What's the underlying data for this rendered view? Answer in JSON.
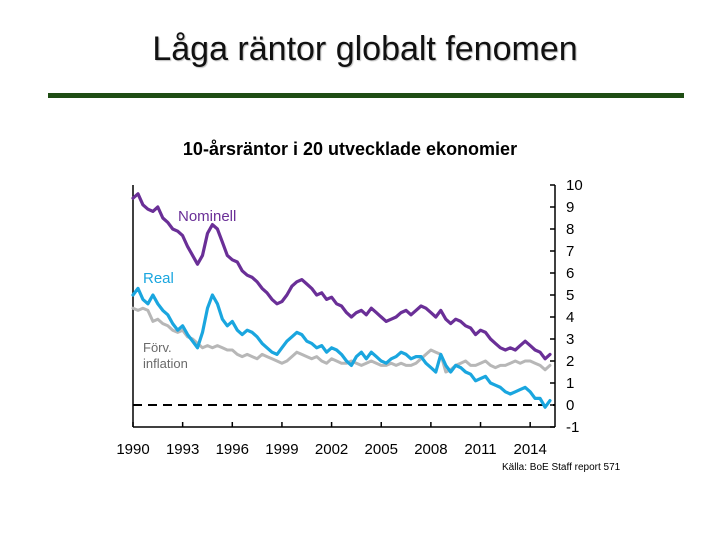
{
  "slide": {
    "title": "Låga räntor globalt fenomen",
    "source": "Källa: BoE Staff report 571"
  },
  "colors": {
    "rule": "#1f4d14",
    "nominal": "#6a2f97",
    "real": "#1aa6df",
    "inflation": "#b7b7b7",
    "frame": "#000000"
  },
  "chart_data": {
    "type": "line",
    "title": "10-årsräntor i 20 utvecklade ekonomier",
    "xlabel": "",
    "ylabel": "",
    "xlim": [
      1990,
      2015.5
    ],
    "ylim": [
      -1,
      10
    ],
    "x_ticks": [
      1990,
      1993,
      1996,
      1999,
      2002,
      2005,
      2008,
      2011,
      2014
    ],
    "y_ticks": [
      10,
      9,
      8,
      7,
      6,
      5,
      4,
      3,
      2,
      1,
      0,
      -1
    ],
    "grid": false,
    "annotations": [
      {
        "label": "Nominell",
        "series": "Nominell"
      },
      {
        "label": "Real",
        "series": "Real"
      },
      {
        "label": "Förv.",
        "series": "Förväntad inflation"
      },
      {
        "label": "inflation",
        "series": "Förväntad inflation"
      }
    ],
    "series": [
      {
        "name": "Nominell",
        "x": [
          1990.0,
          1990.3,
          1990.6,
          1990.9,
          1991.2,
          1991.5,
          1991.8,
          1992.1,
          1992.4,
          1992.7,
          1993.0,
          1993.3,
          1993.6,
          1993.9,
          1994.2,
          1994.5,
          1994.8,
          1995.1,
          1995.4,
          1995.7,
          1996.0,
          1996.3,
          1996.6,
          1996.9,
          1997.2,
          1997.5,
          1997.8,
          1998.1,
          1998.4,
          1998.7,
          1999.0,
          1999.3,
          1999.6,
          1999.9,
          2000.2,
          2000.5,
          2000.8,
          2001.1,
          2001.4,
          2001.7,
          2002.0,
          2002.3,
          2002.6,
          2002.9,
          2003.2,
          2003.5,
          2003.8,
          2004.1,
          2004.4,
          2004.7,
          2005.0,
          2005.3,
          2005.6,
          2005.9,
          2006.2,
          2006.5,
          2006.8,
          2007.1,
          2007.4,
          2007.7,
          2008.0,
          2008.3,
          2008.6,
          2008.9,
          2009.2,
          2009.5,
          2009.8,
          2010.1,
          2010.4,
          2010.7,
          2011.0,
          2011.3,
          2011.6,
          2011.9,
          2012.2,
          2012.5,
          2012.8,
          2013.1,
          2013.4,
          2013.7,
          2014.0,
          2014.3,
          2014.6,
          2014.9,
          2015.2
        ],
        "values": [
          9.4,
          9.6,
          9.1,
          8.9,
          8.8,
          9.0,
          8.5,
          8.3,
          8.0,
          7.9,
          7.7,
          7.2,
          6.8,
          6.4,
          6.8,
          7.8,
          8.2,
          8.0,
          7.4,
          6.8,
          6.6,
          6.5,
          6.1,
          5.9,
          5.8,
          5.6,
          5.3,
          5.1,
          4.8,
          4.6,
          4.7,
          5.0,
          5.4,
          5.6,
          5.7,
          5.5,
          5.3,
          5.0,
          5.1,
          4.8,
          4.9,
          4.6,
          4.5,
          4.2,
          4.0,
          4.2,
          4.3,
          4.1,
          4.4,
          4.2,
          4.0,
          3.8,
          3.9,
          4.0,
          4.2,
          4.3,
          4.1,
          4.3,
          4.5,
          4.4,
          4.2,
          4.0,
          4.3,
          3.9,
          3.7,
          3.9,
          3.8,
          3.6,
          3.5,
          3.2,
          3.4,
          3.3,
          3.0,
          2.8,
          2.6,
          2.5,
          2.6,
          2.5,
          2.7,
          2.9,
          2.7,
          2.5,
          2.4,
          2.1,
          2.3
        ]
      },
      {
        "name": "Real",
        "x": [
          1990.0,
          1990.3,
          1990.6,
          1990.9,
          1991.2,
          1991.5,
          1991.8,
          1992.1,
          1992.4,
          1992.7,
          1993.0,
          1993.3,
          1993.6,
          1993.9,
          1994.2,
          1994.5,
          1994.8,
          1995.1,
          1995.4,
          1995.7,
          1996.0,
          1996.3,
          1996.6,
          1996.9,
          1997.2,
          1997.5,
          1997.8,
          1998.1,
          1998.4,
          1998.7,
          1999.0,
          1999.3,
          1999.6,
          1999.9,
          2000.2,
          2000.5,
          2000.8,
          2001.1,
          2001.4,
          2001.7,
          2002.0,
          2002.3,
          2002.6,
          2002.9,
          2003.2,
          2003.5,
          2003.8,
          2004.1,
          2004.4,
          2004.7,
          2005.0,
          2005.3,
          2005.6,
          2005.9,
          2006.2,
          2006.5,
          2006.8,
          2007.1,
          2007.4,
          2007.7,
          2008.0,
          2008.3,
          2008.6,
          2008.9,
          2009.2,
          2009.5,
          2009.8,
          2010.1,
          2010.4,
          2010.7,
          2011.0,
          2011.3,
          2011.6,
          2011.9,
          2012.2,
          2012.5,
          2012.8,
          2013.1,
          2013.4,
          2013.7,
          2014.0,
          2014.3,
          2014.6,
          2014.9,
          2015.2
        ],
        "values": [
          5.0,
          5.3,
          4.8,
          4.6,
          5.0,
          4.6,
          4.3,
          4.1,
          3.7,
          3.4,
          3.6,
          3.2,
          2.9,
          2.6,
          3.3,
          4.4,
          5.0,
          4.6,
          3.9,
          3.6,
          3.8,
          3.4,
          3.2,
          3.4,
          3.3,
          3.1,
          2.8,
          2.6,
          2.4,
          2.3,
          2.6,
          2.9,
          3.1,
          3.3,
          3.2,
          2.9,
          2.8,
          2.6,
          2.7,
          2.4,
          2.6,
          2.5,
          2.3,
          2.0,
          1.8,
          2.2,
          2.4,
          2.1,
          2.4,
          2.2,
          2.0,
          1.9,
          2.1,
          2.2,
          2.4,
          2.3,
          2.1,
          2.2,
          2.2,
          1.9,
          1.7,
          1.5,
          2.3,
          1.8,
          1.5,
          1.8,
          1.7,
          1.5,
          1.4,
          1.1,
          1.2,
          1.3,
          1.0,
          0.9,
          0.8,
          0.6,
          0.5,
          0.6,
          0.7,
          0.8,
          0.6,
          0.3,
          0.3,
          -0.1,
          0.2
        ]
      },
      {
        "name": "Förväntad inflation",
        "x": [
          1990.0,
          1990.3,
          1990.6,
          1990.9,
          1991.2,
          1991.5,
          1991.8,
          1992.1,
          1992.4,
          1992.7,
          1993.0,
          1993.3,
          1993.6,
          1993.9,
          1994.2,
          1994.5,
          1994.8,
          1995.1,
          1995.4,
          1995.7,
          1996.0,
          1996.3,
          1996.6,
          1996.9,
          1997.2,
          1997.5,
          1997.8,
          1998.1,
          1998.4,
          1998.7,
          1999.0,
          1999.3,
          1999.6,
          1999.9,
          2000.2,
          2000.5,
          2000.8,
          2001.1,
          2001.4,
          2001.7,
          2002.0,
          2002.3,
          2002.6,
          2002.9,
          2003.2,
          2003.5,
          2003.8,
          2004.1,
          2004.4,
          2004.7,
          2005.0,
          2005.3,
          2005.6,
          2005.9,
          2006.2,
          2006.5,
          2006.8,
          2007.1,
          2007.4,
          2007.7,
          2008.0,
          2008.3,
          2008.6,
          2008.9,
          2009.2,
          2009.5,
          2009.8,
          2010.1,
          2010.4,
          2010.7,
          2011.0,
          2011.3,
          2011.6,
          2011.9,
          2012.2,
          2012.5,
          2012.8,
          2013.1,
          2013.4,
          2013.7,
          2014.0,
          2014.3,
          2014.6,
          2014.9,
          2015.2
        ],
        "values": [
          4.4,
          4.3,
          4.4,
          4.3,
          3.8,
          3.9,
          3.7,
          3.6,
          3.4,
          3.3,
          3.4,
          3.1,
          3.0,
          2.8,
          2.6,
          2.7,
          2.6,
          2.7,
          2.6,
          2.5,
          2.5,
          2.3,
          2.2,
          2.3,
          2.2,
          2.1,
          2.3,
          2.2,
          2.1,
          2.0,
          1.9,
          2.0,
          2.2,
          2.4,
          2.3,
          2.2,
          2.1,
          2.2,
          2.0,
          1.9,
          2.1,
          2.0,
          1.9,
          1.9,
          2.0,
          1.9,
          1.8,
          1.9,
          2.0,
          1.9,
          1.8,
          1.8,
          1.9,
          1.8,
          1.9,
          1.8,
          1.8,
          1.9,
          2.1,
          2.3,
          2.5,
          2.4,
          2.3,
          1.5,
          1.6,
          1.8,
          1.9,
          2.0,
          1.8,
          1.8,
          1.9,
          2.0,
          1.8,
          1.7,
          1.8,
          1.8,
          1.9,
          2.0,
          1.9,
          2.0,
          2.0,
          1.9,
          1.8,
          1.6,
          1.8
        ]
      }
    ]
  }
}
